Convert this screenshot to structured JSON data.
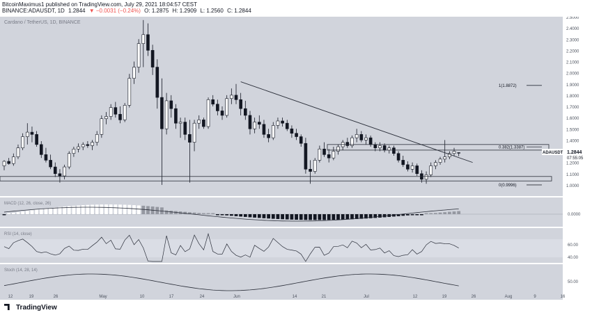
{
  "header": {
    "published_line": "BitcoinMaximus1 published on TradingView.com, July 29, 2021 18:04:57 CEST",
    "symbol": "BINANCE:ADAUSDT, 1D",
    "price": "1.2844",
    "change": "▼ −0.0031 (−0.24%)",
    "ohlc": [
      "O: 1.2875",
      "H: 1.2909",
      "L: 1.2560",
      "C: 1.2844"
    ]
  },
  "footer": {
    "brand": "TradingView"
  },
  "colors": {
    "up": "#ffffff",
    "down": "#131722",
    "pane_bg": "#d1d4dc",
    "line": "#2a2e39",
    "label_bg": "#ffffff"
  },
  "chart_data": {
    "type": "candlestick",
    "title": "Cardano / TetherUS, 1D, BINANCE",
    "ylim": [
      0.9,
      2.5
    ],
    "y_ticks": [
      "2.5000",
      "2.4000",
      "2.3000",
      "2.2000",
      "2.1000",
      "2.0000",
      "1.9000",
      "1.8000",
      "1.7000",
      "1.6000",
      "1.5000",
      "1.4000",
      "1.3000",
      "1.2000",
      "1.1000",
      "1.0000"
    ],
    "x_ticks": [
      "12",
      "19",
      "26",
      "May",
      "10",
      "17",
      "24",
      "Jun",
      "14",
      "21",
      "Jul",
      "12",
      "19",
      "26",
      "Aug",
      "9",
      "16"
    ],
    "last_price": {
      "symbol": "ADAUSDT",
      "value": "1.2844",
      "countdown": "07:55:05"
    },
    "fib_levels": [
      {
        "label": "1(1.8872)",
        "value": 1.8872
      },
      {
        "label": "0.382(1.3387)",
        "value": 1.3387
      },
      {
        "label": "0(0.9996)",
        "value": 0.9996
      }
    ],
    "candles": [
      {
        "o": 1.17,
        "h": 1.22,
        "l": 1.13,
        "c": 1.21
      },
      {
        "o": 1.21,
        "h": 1.24,
        "l": 1.18,
        "c": 1.19
      },
      {
        "o": 1.19,
        "h": 1.28,
        "l": 1.17,
        "c": 1.25
      },
      {
        "o": 1.25,
        "h": 1.36,
        "l": 1.23,
        "c": 1.33
      },
      {
        "o": 1.33,
        "h": 1.46,
        "l": 1.31,
        "c": 1.43
      },
      {
        "o": 1.43,
        "h": 1.55,
        "l": 1.36,
        "c": 1.47
      },
      {
        "o": 1.47,
        "h": 1.52,
        "l": 1.38,
        "c": 1.45
      },
      {
        "o": 1.45,
        "h": 1.48,
        "l": 1.34,
        "c": 1.36
      },
      {
        "o": 1.36,
        "h": 1.39,
        "l": 1.24,
        "c": 1.27
      },
      {
        "o": 1.27,
        "h": 1.33,
        "l": 1.2,
        "c": 1.22
      },
      {
        "o": 1.22,
        "h": 1.27,
        "l": 1.14,
        "c": 1.16
      },
      {
        "o": 1.16,
        "h": 1.2,
        "l": 1.07,
        "c": 1.1
      },
      {
        "o": 1.1,
        "h": 1.14,
        "l": 1.02,
        "c": 1.08
      },
      {
        "o": 1.08,
        "h": 1.18,
        "l": 1.05,
        "c": 1.16
      },
      {
        "o": 1.16,
        "h": 1.3,
        "l": 1.14,
        "c": 1.28
      },
      {
        "o": 1.28,
        "h": 1.34,
        "l": 1.25,
        "c": 1.32
      },
      {
        "o": 1.32,
        "h": 1.37,
        "l": 1.29,
        "c": 1.34
      },
      {
        "o": 1.34,
        "h": 1.38,
        "l": 1.31,
        "c": 1.36
      },
      {
        "o": 1.36,
        "h": 1.39,
        "l": 1.33,
        "c": 1.35
      },
      {
        "o": 1.35,
        "h": 1.4,
        "l": 1.31,
        "c": 1.38
      },
      {
        "o": 1.38,
        "h": 1.48,
        "l": 1.35,
        "c": 1.45
      },
      {
        "o": 1.45,
        "h": 1.62,
        "l": 1.42,
        "c": 1.59
      },
      {
        "o": 1.59,
        "h": 1.65,
        "l": 1.54,
        "c": 1.61
      },
      {
        "o": 1.61,
        "h": 1.72,
        "l": 1.58,
        "c": 1.69
      },
      {
        "o": 1.69,
        "h": 1.74,
        "l": 1.6,
        "c": 1.63
      },
      {
        "o": 1.63,
        "h": 1.7,
        "l": 1.55,
        "c": 1.58
      },
      {
        "o": 1.58,
        "h": 1.73,
        "l": 1.56,
        "c": 1.71
      },
      {
        "o": 1.71,
        "h": 1.99,
        "l": 1.69,
        "c": 1.95
      },
      {
        "o": 1.95,
        "h": 2.1,
        "l": 1.9,
        "c": 2.05
      },
      {
        "o": 2.05,
        "h": 2.3,
        "l": 2.0,
        "c": 2.26
      },
      {
        "o": 2.26,
        "h": 2.47,
        "l": 2.05,
        "c": 2.34
      },
      {
        "o": 2.34,
        "h": 2.44,
        "l": 2.15,
        "c": 2.2
      },
      {
        "o": 2.2,
        "h": 2.25,
        "l": 1.98,
        "c": 2.05
      },
      {
        "o": 2.05,
        "h": 2.12,
        "l": 1.68,
        "c": 1.78
      },
      {
        "o": 1.78,
        "h": 1.95,
        "l": 1.0,
        "c": 1.5
      },
      {
        "o": 1.5,
        "h": 1.82,
        "l": 1.45,
        "c": 1.75
      },
      {
        "o": 1.75,
        "h": 1.8,
        "l": 1.6,
        "c": 1.68
      },
      {
        "o": 1.68,
        "h": 1.72,
        "l": 1.5,
        "c": 1.55
      },
      {
        "o": 1.55,
        "h": 1.6,
        "l": 1.42,
        "c": 1.56
      },
      {
        "o": 1.56,
        "h": 1.6,
        "l": 1.4,
        "c": 1.45
      },
      {
        "o": 1.45,
        "h": 1.58,
        "l": 1.02,
        "c": 1.38
      },
      {
        "o": 1.38,
        "h": 1.58,
        "l": 1.3,
        "c": 1.55
      },
      {
        "o": 1.55,
        "h": 1.62,
        "l": 1.5,
        "c": 1.58
      },
      {
        "o": 1.58,
        "h": 1.6,
        "l": 1.5,
        "c": 1.52
      },
      {
        "o": 1.52,
        "h": 1.78,
        "l": 1.5,
        "c": 1.76
      },
      {
        "o": 1.76,
        "h": 1.8,
        "l": 1.7,
        "c": 1.72
      },
      {
        "o": 1.72,
        "h": 1.76,
        "l": 1.62,
        "c": 1.66
      },
      {
        "o": 1.66,
        "h": 1.7,
        "l": 1.58,
        "c": 1.62
      },
      {
        "o": 1.62,
        "h": 1.8,
        "l": 1.6,
        "c": 1.77
      },
      {
        "o": 1.77,
        "h": 1.86,
        "l": 1.72,
        "c": 1.8
      },
      {
        "o": 1.8,
        "h": 1.9,
        "l": 1.72,
        "c": 1.76
      },
      {
        "o": 1.76,
        "h": 1.82,
        "l": 1.62,
        "c": 1.68
      },
      {
        "o": 1.68,
        "h": 1.75,
        "l": 1.58,
        "c": 1.62
      },
      {
        "o": 1.62,
        "h": 1.66,
        "l": 1.45,
        "c": 1.5
      },
      {
        "o": 1.5,
        "h": 1.6,
        "l": 1.46,
        "c": 1.56
      },
      {
        "o": 1.56,
        "h": 1.62,
        "l": 1.5,
        "c": 1.54
      },
      {
        "o": 1.54,
        "h": 1.58,
        "l": 1.42,
        "c": 1.45
      },
      {
        "o": 1.45,
        "h": 1.5,
        "l": 1.38,
        "c": 1.42
      },
      {
        "o": 1.42,
        "h": 1.56,
        "l": 1.4,
        "c": 1.53
      },
      {
        "o": 1.53,
        "h": 1.6,
        "l": 1.5,
        "c": 1.57
      },
      {
        "o": 1.57,
        "h": 1.6,
        "l": 1.52,
        "c": 1.55
      },
      {
        "o": 1.55,
        "h": 1.58,
        "l": 1.48,
        "c": 1.5
      },
      {
        "o": 1.5,
        "h": 1.53,
        "l": 1.42,
        "c": 1.46
      },
      {
        "o": 1.46,
        "h": 1.5,
        "l": 1.4,
        "c": 1.43
      },
      {
        "o": 1.43,
        "h": 1.45,
        "l": 1.34,
        "c": 1.37
      },
      {
        "o": 1.37,
        "h": 1.42,
        "l": 1.1,
        "c": 1.14
      },
      {
        "o": 1.14,
        "h": 1.22,
        "l": 1.01,
        "c": 1.12
      },
      {
        "o": 1.12,
        "h": 1.24,
        "l": 1.1,
        "c": 1.22
      },
      {
        "o": 1.22,
        "h": 1.35,
        "l": 1.2,
        "c": 1.32
      },
      {
        "o": 1.32,
        "h": 1.38,
        "l": 1.25,
        "c": 1.27
      },
      {
        "o": 1.27,
        "h": 1.32,
        "l": 1.2,
        "c": 1.24
      },
      {
        "o": 1.24,
        "h": 1.34,
        "l": 1.22,
        "c": 1.3
      },
      {
        "o": 1.3,
        "h": 1.36,
        "l": 1.27,
        "c": 1.34
      },
      {
        "o": 1.34,
        "h": 1.4,
        "l": 1.31,
        "c": 1.38
      },
      {
        "o": 1.38,
        "h": 1.42,
        "l": 1.33,
        "c": 1.35
      },
      {
        "o": 1.35,
        "h": 1.44,
        "l": 1.33,
        "c": 1.42
      },
      {
        "o": 1.42,
        "h": 1.5,
        "l": 1.38,
        "c": 1.45
      },
      {
        "o": 1.45,
        "h": 1.48,
        "l": 1.38,
        "c": 1.4
      },
      {
        "o": 1.4,
        "h": 1.45,
        "l": 1.36,
        "c": 1.42
      },
      {
        "o": 1.42,
        "h": 1.44,
        "l": 1.34,
        "c": 1.36
      },
      {
        "o": 1.36,
        "h": 1.38,
        "l": 1.3,
        "c": 1.33
      },
      {
        "o": 1.33,
        "h": 1.38,
        "l": 1.3,
        "c": 1.35
      },
      {
        "o": 1.35,
        "h": 1.37,
        "l": 1.29,
        "c": 1.31
      },
      {
        "o": 1.31,
        "h": 1.35,
        "l": 1.28,
        "c": 1.33
      },
      {
        "o": 1.33,
        "h": 1.35,
        "l": 1.26,
        "c": 1.28
      },
      {
        "o": 1.28,
        "h": 1.3,
        "l": 1.2,
        "c": 1.22
      },
      {
        "o": 1.22,
        "h": 1.26,
        "l": 1.16,
        "c": 1.18
      },
      {
        "o": 1.18,
        "h": 1.21,
        "l": 1.12,
        "c": 1.14
      },
      {
        "o": 1.14,
        "h": 1.2,
        "l": 1.11,
        "c": 1.17
      },
      {
        "o": 1.17,
        "h": 1.19,
        "l": 1.08,
        "c": 1.1
      },
      {
        "o": 1.1,
        "h": 1.13,
        "l": 1.02,
        "c": 1.05
      },
      {
        "o": 1.05,
        "h": 1.12,
        "l": 1.01,
        "c": 1.09
      },
      {
        "o": 1.09,
        "h": 1.2,
        "l": 1.07,
        "c": 1.17
      },
      {
        "o": 1.17,
        "h": 1.22,
        "l": 1.14,
        "c": 1.2
      },
      {
        "o": 1.2,
        "h": 1.25,
        "l": 1.18,
        "c": 1.23
      },
      {
        "o": 1.23,
        "h": 1.4,
        "l": 1.2,
        "c": 1.25
      },
      {
        "o": 1.25,
        "h": 1.3,
        "l": 1.23,
        "c": 1.28
      },
      {
        "o": 1.28,
        "h": 1.33,
        "l": 1.26,
        "c": 1.3
      },
      {
        "o": 1.2875,
        "h": 1.2909,
        "l": 1.256,
        "c": 1.2844
      }
    ],
    "trendline": {
      "from": [
        1.92,
        1.92
      ],
      "to": [
        1.2,
        1.2
      ]
    },
    "panes": [
      {
        "name": "MACD (12, 26, close, 26)",
        "level": "0.0000"
      },
      {
        "name": "RSI (14, close)",
        "levels": [
          "60.00",
          "40.00"
        ]
      },
      {
        "name": "Stoch (14, 28, 14)",
        "level": "50.00"
      }
    ]
  }
}
